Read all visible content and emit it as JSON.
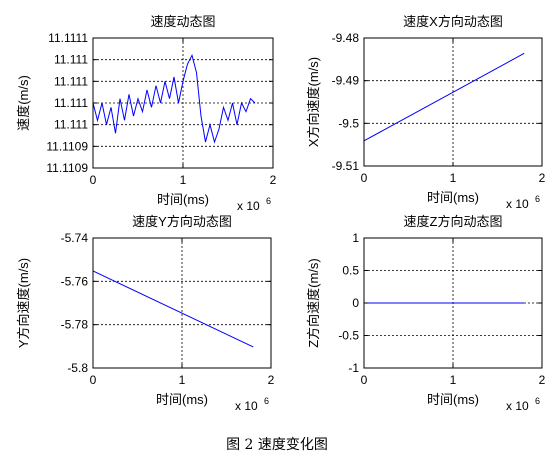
{
  "caption": "图 2  速度变化图",
  "chart_data": [
    {
      "type": "line",
      "title": "速度动态图",
      "xlabel": "时间(ms)",
      "ylabel": "速度(m/s)",
      "x_multiplier": "x 10",
      "x_exponent": "6",
      "xlim": [
        0,
        2
      ],
      "ylim": [
        11.11085,
        11.11115
      ],
      "xticks": [
        0,
        1,
        2
      ],
      "yticks": [
        11.11085,
        11.1109,
        11.11095,
        11.111,
        11.11105,
        11.1111,
        11.11115
      ],
      "yticklabels": [
        "11.1109",
        "11.1109",
        "11.111",
        "11.111",
        "11.111",
        "11.111",
        "11.1111"
      ],
      "grid": true,
      "series": [
        {
          "color": "#0000ff",
          "x": [
            0,
            0.05,
            0.1,
            0.15,
            0.2,
            0.25,
            0.3,
            0.35,
            0.4,
            0.45,
            0.5,
            0.55,
            0.6,
            0.65,
            0.7,
            0.75,
            0.8,
            0.85,
            0.9,
            0.95,
            1.0,
            1.05,
            1.1,
            1.15,
            1.2,
            1.25,
            1.3,
            1.35,
            1.4,
            1.45,
            1.5,
            1.55,
            1.6,
            1.65,
            1.7,
            1.75,
            1.8
          ],
          "y": [
            11.111,
            11.11096,
            11.111,
            11.11095,
            11.11099,
            11.11093,
            11.11101,
            11.11096,
            11.11102,
            11.11097,
            11.11101,
            11.11098,
            11.11103,
            11.11099,
            11.11104,
            11.111,
            11.11105,
            11.11101,
            11.11106,
            11.111,
            11.11105,
            11.11109,
            11.11111,
            11.11107,
            11.11097,
            11.11091,
            11.11095,
            11.11091,
            11.11094,
            11.11099,
            11.11096,
            11.111,
            11.11095,
            11.111,
            11.11098,
            11.11101,
            11.111
          ]
        }
      ]
    },
    {
      "type": "line",
      "title": "速度X方向动态图",
      "xlabel": "时间(ms)",
      "ylabel": "X方向速度(m/s)",
      "x_multiplier": "x 10",
      "x_exponent": "6",
      "xlim": [
        0,
        2
      ],
      "ylim": [
        -9.51,
        -9.48
      ],
      "xticks": [
        0,
        1,
        2
      ],
      "yticks": [
        -9.51,
        -9.5,
        -9.49,
        -9.48
      ],
      "yticklabels": [
        "-9.51",
        "-9.5",
        "-9.49",
        "-9.48"
      ],
      "grid": true,
      "series": [
        {
          "color": "#0000ff",
          "x": [
            0,
            1.8
          ],
          "y": [
            -9.5041,
            -9.4836
          ]
        }
      ]
    },
    {
      "type": "line",
      "title": "速度Y方向动态图",
      "xlabel": "时间(ms)",
      "ylabel": "Y方向速度(m/s)",
      "x_multiplier": "x 10",
      "x_exponent": "6",
      "xlim": [
        0,
        2
      ],
      "ylim": [
        -5.8,
        -5.74
      ],
      "xticks": [
        0,
        1,
        2
      ],
      "yticks": [
        -5.8,
        -5.78,
        -5.76,
        -5.74
      ],
      "yticklabels": [
        "-5.8",
        "-5.78",
        "-5.76",
        "-5.74"
      ],
      "grid": true,
      "series": [
        {
          "color": "#0000ff",
          "x": [
            0,
            1.8
          ],
          "y": [
            -5.7552,
            -5.7903
          ]
        }
      ]
    },
    {
      "type": "line",
      "title": "速度Z方向动态图",
      "xlabel": "时间(ms)",
      "ylabel": "Z方向速度(m/s)",
      "x_multiplier": "x 10",
      "x_exponent": "6",
      "xlim": [
        0,
        2
      ],
      "ylim": [
        -1,
        1
      ],
      "xticks": [
        0,
        1,
        2
      ],
      "yticks": [
        -1,
        -0.5,
        0,
        0.5,
        1
      ],
      "yticklabels": [
        "-1",
        "-0.5",
        "0",
        "0.5",
        "1"
      ],
      "grid": true,
      "series": [
        {
          "color": "#0000ff",
          "x": [
            0,
            1.8
          ],
          "y": [
            0,
            0
          ]
        }
      ]
    }
  ]
}
